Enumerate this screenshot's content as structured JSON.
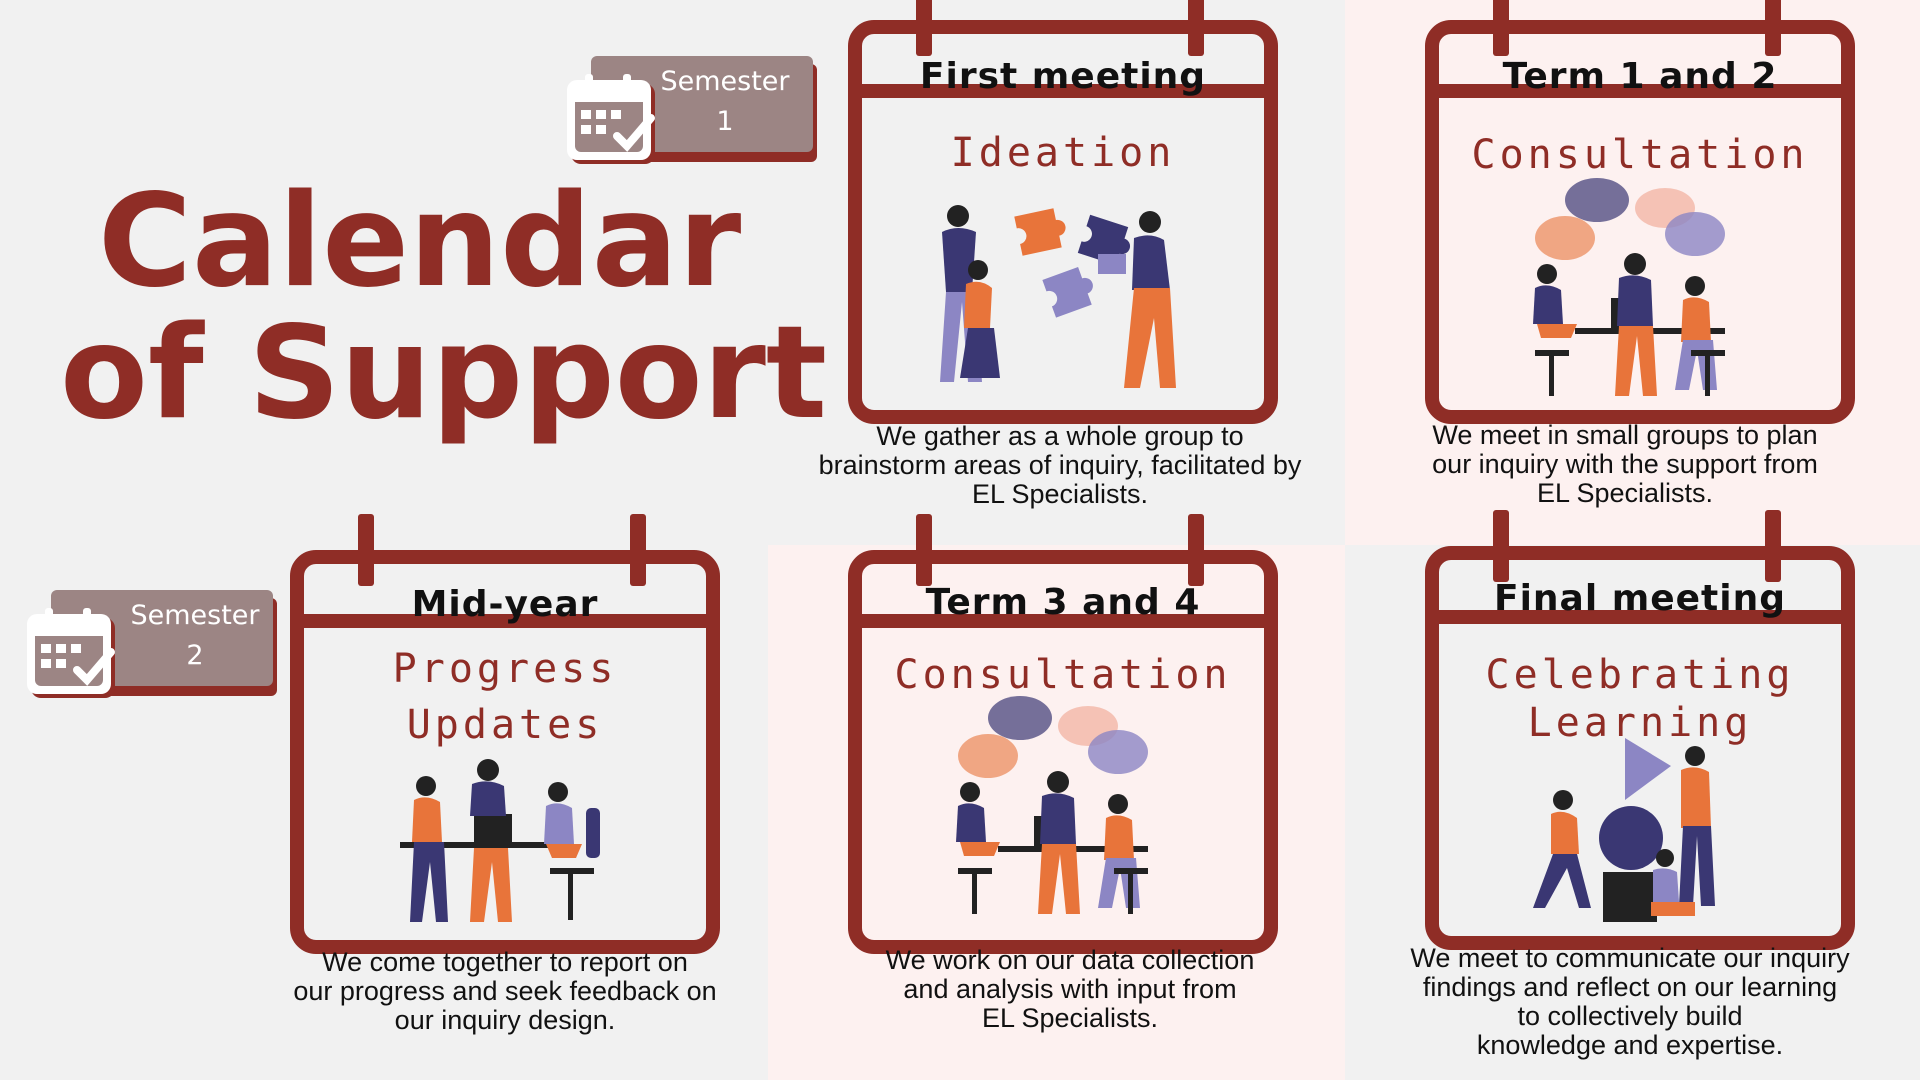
{
  "title": {
    "line1": "Calendar",
    "line2": "of Support"
  },
  "semesters": [
    {
      "label": "Semester",
      "number": "1"
    },
    {
      "label": "Semester",
      "number": "2"
    }
  ],
  "icons": {
    "semester": "calendar-check-icon"
  },
  "colors": {
    "accent": "#8f2d26",
    "badge": "#9c8584",
    "background": "#f1f1f1",
    "panel_pink": "#fdf1f0"
  },
  "cards": [
    {
      "heading": "First meeting",
      "subtitle": [
        "Ideation"
      ],
      "illustration": "puzzle-teamwork-illustration",
      "description": [
        "We gather as a whole group to",
        "brainstorm areas of inquiry, facilitated by",
        "EL Specialists."
      ]
    },
    {
      "heading": "Term 1 and 2",
      "subtitle": [
        "Consultation"
      ],
      "illustration": "discussion-illustration",
      "description": [
        "We meet in small groups to plan",
        "our inquiry with the support from",
        "EL Specialists."
      ]
    },
    {
      "heading": "Mid-year",
      "subtitle": [
        "Progress",
        "Updates"
      ],
      "illustration": "meeting-illustration",
      "description": [
        "We come together to report on",
        "our progress and seek feedback on",
        "our inquiry design."
      ]
    },
    {
      "heading": "Term 3 and 4",
      "subtitle": [
        "Consultation"
      ],
      "illustration": "discussion-illustration",
      "description": [
        "We work on our data collection",
        "and analysis with input from",
        "EL Specialists."
      ]
    },
    {
      "heading": "Final meeting",
      "subtitle": [
        "Celebrating",
        "Learning"
      ],
      "illustration": "shapes-building-illustration",
      "description": [
        "We meet to communicate our inquiry",
        "findings and reflect on our learning",
        "to collectively build",
        "knowledge and expertise."
      ]
    }
  ]
}
